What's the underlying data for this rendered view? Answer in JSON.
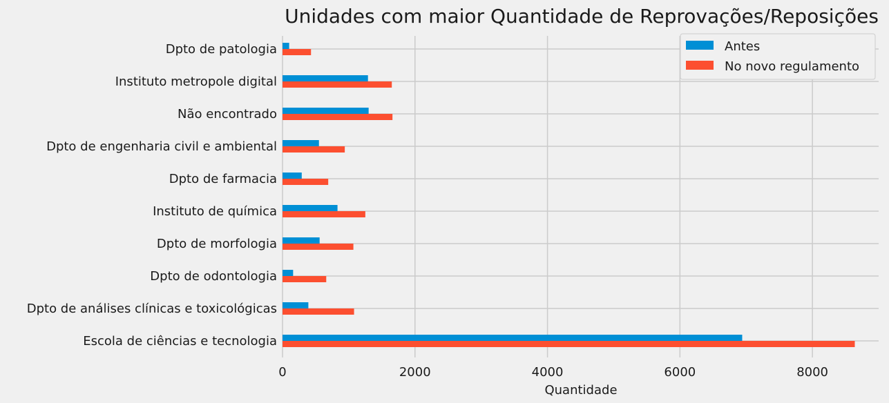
{
  "chart_data": {
    "type": "bar",
    "orientation": "horizontal",
    "title": "Unidades com maior Quantidade de Reprovações/Reposições",
    "xlabel": "Quantidade",
    "ylabel": "",
    "xlim": [
      0,
      9000
    ],
    "x_ticks": [
      0,
      2000,
      4000,
      6000,
      8000
    ],
    "grid": true,
    "legend_position": "top-right",
    "categories": [
      "Dpto de patologia",
      "Instituto metropole digital",
      "Não encontrado",
      "Dpto de engenharia civil e ambiental",
      "Dpto de farmacia",
      "Instituto de química",
      "Dpto de morfologia",
      "Dpto de odontologia",
      "Dpto de análises clínicas e toxicológicas",
      "Escola de ciências e tecnologia"
    ],
    "series": [
      {
        "name": "Antes",
        "color": "#008fd5",
        "values": [
          100,
          1290,
          1300,
          550,
          290,
          830,
          560,
          160,
          390,
          6940
        ]
      },
      {
        "name": "No novo regulamento",
        "color": "#fc4f30",
        "values": [
          430,
          1650,
          1660,
          940,
          690,
          1250,
          1070,
          660,
          1080,
          8640
        ]
      }
    ]
  }
}
